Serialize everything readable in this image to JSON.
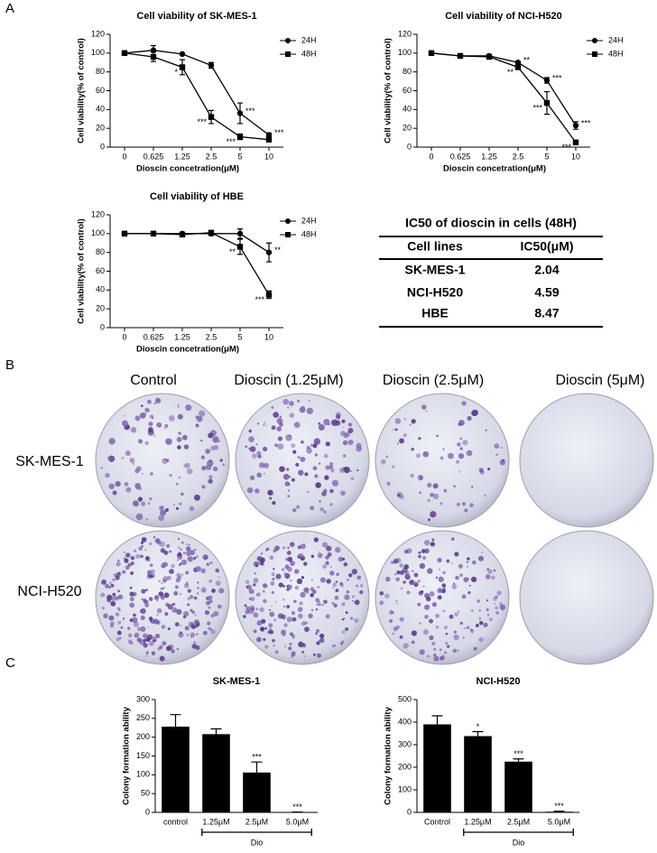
{
  "panels": [
    "A",
    "B",
    "C"
  ],
  "chart_data": [
    {
      "type": "line",
      "title": "Cell viability of SK-MES-1",
      "x_label": "Dioscin concetration(μM)",
      "y_label": "Cell viability(% of control)",
      "categories": [
        "0",
        "0.625",
        "1.25",
        "2.5",
        "5",
        "10"
      ],
      "ylim": [
        0,
        120
      ],
      "yticks": [
        0,
        20,
        40,
        60,
        80,
        100,
        120
      ],
      "legend": "right",
      "series": [
        {
          "name": "24H",
          "color": "#000000",
          "marker": "circle",
          "values": [
            100,
            103,
            99,
            87,
            36,
            13
          ],
          "errors": [
            1,
            5,
            1,
            3,
            11,
            2
          ],
          "significance": [
            null,
            null,
            null,
            null,
            "***",
            "***"
          ]
        },
        {
          "name": "48H",
          "color": "#000000",
          "marker": "square",
          "values": [
            100,
            96,
            85,
            32,
            11,
            8
          ],
          "errors": [
            1,
            5,
            8,
            7,
            3,
            2
          ],
          "significance": [
            null,
            null,
            "*",
            "***",
            "***",
            null
          ]
        }
      ]
    },
    {
      "type": "line",
      "title": "Cell viability of NCI-H520",
      "x_label": "Dioscin concetration(μM)",
      "y_label": "Cell viability(% of control)",
      "categories": [
        "0",
        "0.625",
        "1.25",
        "2.5",
        "5",
        "10"
      ],
      "ylim": [
        0,
        120
      ],
      "yticks": [
        0,
        20,
        40,
        60,
        80,
        100,
        120
      ],
      "legend": "right",
      "series": [
        {
          "name": "24H",
          "color": "#000000",
          "marker": "circle",
          "values": [
            100,
            97,
            97,
            90,
            71,
            23
          ],
          "errors": [
            1,
            1,
            1,
            1,
            3,
            4
          ],
          "significance": [
            null,
            null,
            null,
            "**",
            "***",
            "***"
          ]
        },
        {
          "name": "48H",
          "color": "#000000",
          "marker": "square",
          "values": [
            100,
            97,
            96,
            85,
            47,
            5
          ],
          "errors": [
            1,
            1,
            1,
            1,
            12,
            2
          ],
          "significance": [
            null,
            null,
            null,
            "**",
            "***",
            "***"
          ]
        }
      ]
    },
    {
      "type": "line",
      "title": "Cell viability of HBE",
      "x_label": "Dioscin concetration(μM)",
      "y_label": "Cell viability(% of control)",
      "categories": [
        "0",
        "0.625",
        "1.25",
        "2.5",
        "5",
        "10"
      ],
      "ylim": [
        0,
        120
      ],
      "yticks": [
        0,
        20,
        40,
        60,
        80,
        100,
        120
      ],
      "legend": "right",
      "series": [
        {
          "name": "24H",
          "color": "#000000",
          "marker": "circle",
          "values": [
            100,
            100,
            100,
            100,
            100,
            80
          ],
          "errors": [
            1,
            1,
            1,
            2,
            5,
            10
          ],
          "significance": [
            null,
            null,
            null,
            null,
            null,
            "**"
          ]
        },
        {
          "name": "48H",
          "color": "#000000",
          "marker": "square",
          "values": [
            100,
            100,
            99,
            101,
            86,
            35
          ],
          "errors": [
            1,
            1,
            2,
            2,
            8,
            4
          ],
          "significance": [
            null,
            null,
            null,
            null,
            "**",
            "***"
          ]
        }
      ]
    },
    {
      "type": "bar",
      "title": "SK-MES-1",
      "y_label": "Colony formation ability",
      "categories": [
        "control",
        "1.25μM",
        "2.5μM",
        "5.0μM"
      ],
      "values": [
        228,
        208,
        106,
        1
      ],
      "errors": [
        32,
        14,
        28,
        0
      ],
      "significance": [
        null,
        null,
        "***",
        "***"
      ],
      "color": "#000000",
      "ylim": [
        0,
        300
      ],
      "yticks": [
        0,
        50,
        100,
        150,
        200,
        250,
        300
      ],
      "group_label": "Dio"
    },
    {
      "type": "bar",
      "title": "NCI-H520",
      "y_label": "Colony formation ability",
      "categories": [
        "Control",
        "1.25μM",
        "2.5μM",
        "5.0μM"
      ],
      "values": [
        390,
        338,
        225,
        3
      ],
      "errors": [
        38,
        20,
        12,
        2
      ],
      "significance": [
        null,
        "*",
        "***",
        "***"
      ],
      "color": "#000000",
      "ylim": [
        0,
        500
      ],
      "yticks": [
        0,
        100,
        200,
        300,
        400,
        500
      ],
      "group_label": "Dio"
    }
  ],
  "table": {
    "title": "IC50 of dioscin in cells (48H)",
    "header": [
      "Cell lines",
      "IC50(μM)"
    ],
    "rows": [
      [
        "SK-MES-1",
        "2.04"
      ],
      [
        "NCI-H520",
        "4.59"
      ],
      [
        "HBE",
        "8.47"
      ]
    ]
  },
  "colony_assay": {
    "columns": [
      "Control",
      "Dioscin (1.25μM)",
      "Dioscin (2.5μM)",
      "Dioscin (5μM)"
    ],
    "rows": [
      "SK-MES-1",
      "NCI-H520"
    ]
  }
}
